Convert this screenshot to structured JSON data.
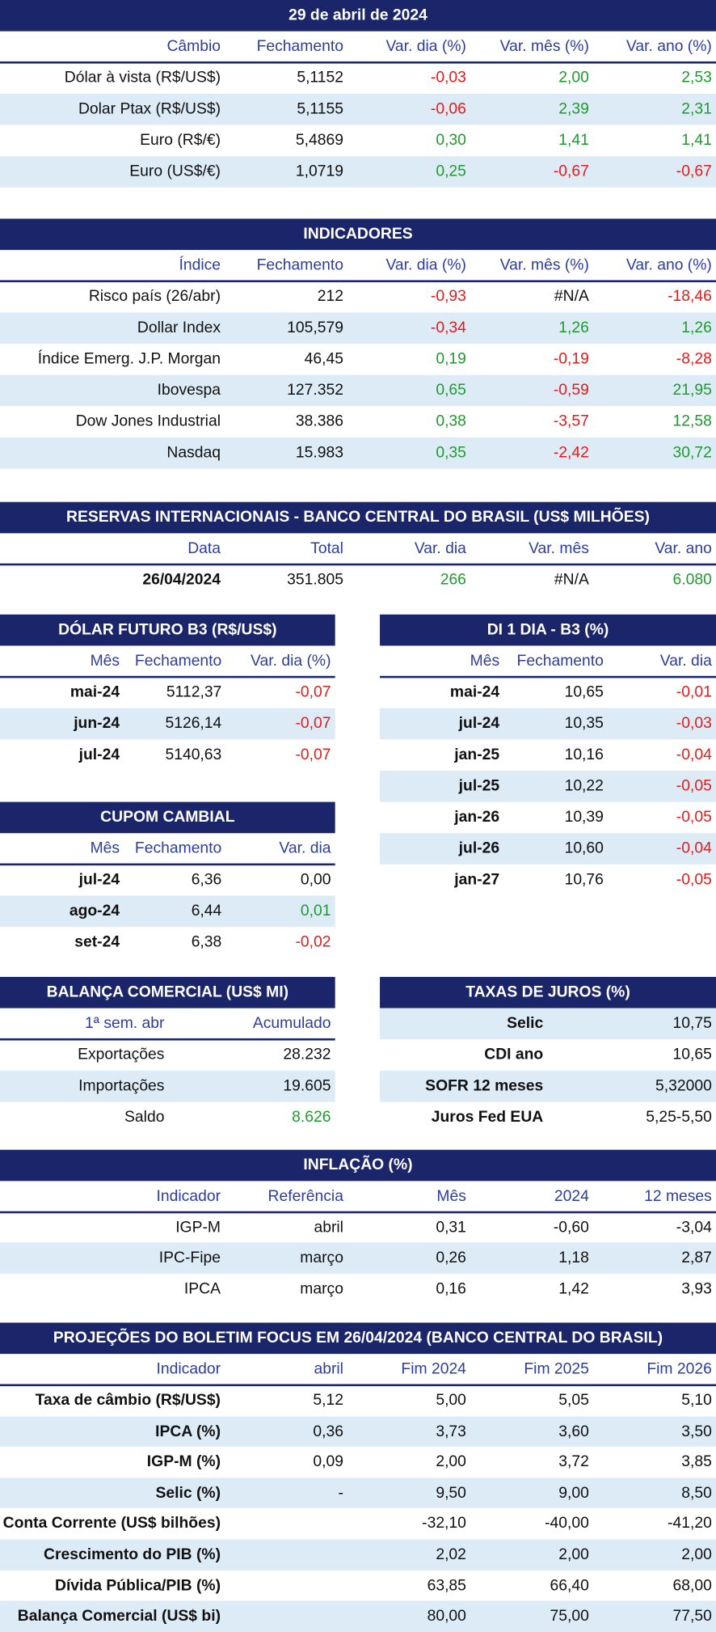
{
  "sections": [
    {
      "title": "29 de abril de 2024",
      "columns": [
        "Câmbio",
        "Fechamento",
        "Var. dia (%)",
        "Var. mês (%)",
        "Var. ano (%)"
      ],
      "tone_columns": [
        2,
        3,
        4
      ],
      "rows": [
        [
          "Dólar à vista (R$/US$)",
          "5,1152",
          "-0,03",
          "2,00",
          "2,53"
        ],
        [
          "Dolar Ptax (R$/US$)",
          "5,1155",
          "-0,06",
          "2,39",
          "2,31"
        ],
        [
          "Euro (R$/€)",
          "5,4869",
          "0,30",
          "1,41",
          "1,41"
        ],
        [
          "Euro (US$/€)",
          "1,0719",
          "0,25",
          "-0,67",
          "-0,67"
        ]
      ]
    },
    {
      "title": "INDICADORES",
      "columns": [
        "Índice",
        "Fechamento",
        "Var. dia (%)",
        "Var. mês (%)",
        "Var. ano (%)"
      ],
      "tone_columns": [
        2,
        3,
        4
      ],
      "rows": [
        [
          "Risco país (26/abr)",
          "212",
          "-0,93",
          "#N/A",
          "-18,46"
        ],
        [
          "Dollar Index",
          "105,579",
          "-0,34",
          "1,26",
          "1,26"
        ],
        [
          "Índice Emerg. J.P. Morgan",
          "46,45",
          "0,19",
          "-0,19",
          "-8,28"
        ],
        [
          "Ibovespa",
          "127.352",
          "0,65",
          "-0,59",
          "21,95"
        ],
        [
          "Dow Jones Industrial",
          "38.386",
          "0,38",
          "-3,57",
          "12,58"
        ],
        [
          "Nasdaq",
          "15.983",
          "0,35",
          "-2,42",
          "30,72"
        ]
      ]
    },
    {
      "title": "RESERVAS INTERNACIONAIS - BANCO CENTRAL DO BRASIL (US$ MILHÕES)",
      "columns": [
        "Data",
        "Total",
        "Var. dia",
        "Var. mês",
        "Var. ano"
      ],
      "tone_columns": [
        2,
        3,
        4
      ],
      "rows": [
        [
          "26/04/2024",
          "351.805",
          "266",
          "#N/A",
          "6.080"
        ]
      ]
    },
    {
      "title": "DÓLAR FUTURO B3 (R$/US$)",
      "columns": [
        "Mês",
        "Fechamento",
        "Var. dia (%)"
      ],
      "tone_columns": [
        2
      ],
      "rows": [
        [
          "mai-24",
          "5112,37",
          "-0,07"
        ],
        [
          "jun-24",
          "5126,14",
          "-0,07"
        ],
        [
          "jul-24",
          "5140,63",
          "-0,07"
        ]
      ]
    },
    {
      "title": "DI 1 DIA - B3 (%)",
      "columns": [
        "Mês",
        "Fechamento",
        "Var. dia"
      ],
      "tone_columns": [
        2
      ],
      "rows": [
        [
          "mai-24",
          "10,65",
          "-0,01"
        ],
        [
          "jul-24",
          "10,35",
          "-0,03"
        ],
        [
          "jan-25",
          "10,16",
          "-0,04"
        ],
        [
          "jul-25",
          "10,22",
          "-0,05"
        ],
        [
          "jan-26",
          "10,39",
          "-0,05"
        ],
        [
          "jul-26",
          "10,60",
          "-0,04"
        ],
        [
          "jan-27",
          "10,76",
          "-0,05"
        ]
      ]
    },
    {
      "title": "CUPOM CAMBIAL",
      "columns": [
        "Mês",
        "Fechamento",
        "Var. dia"
      ],
      "tone_columns": [
        2
      ],
      "rows": [
        [
          "jul-24",
          "6,36",
          "0,00"
        ],
        [
          "ago-24",
          "6,44",
          "0,01"
        ],
        [
          "set-24",
          "6,38",
          "-0,02"
        ]
      ]
    },
    {
      "title": "BALANÇA COMERCIAL (US$ MI)",
      "columns": [
        "1ª sem. abr",
        "Acumulado"
      ],
      "tone_columns": [],
      "green_rows": [
        2
      ],
      "rows": [
        [
          "Exportações",
          "28.232"
        ],
        [
          "Importações",
          "19.605"
        ],
        [
          "Saldo",
          "8.626"
        ]
      ]
    },
    {
      "title": "TAXAS DE JUROS (%)",
      "tone_columns": [],
      "first_row_shaded": true,
      "rows": [
        [
          "Selic",
          "10,75"
        ],
        [
          "CDI ano",
          "10,65"
        ],
        [
          "SOFR 12 meses",
          "5,32000"
        ],
        [
          "Juros Fed EUA",
          "5,25-5,50"
        ]
      ]
    },
    {
      "title": "INFLAÇÃO (%)",
      "columns": [
        "Indicador",
        "Referência",
        "Mês",
        "2024",
        "12 meses"
      ],
      "tone_columns": [],
      "rows": [
        [
          "IGP-M",
          "abril",
          "0,31",
          "-0,60",
          "-3,04"
        ],
        [
          "IPC-Fipe",
          "março",
          "0,26",
          "1,18",
          "2,87"
        ],
        [
          "IPCA",
          "março",
          "0,16",
          "1,42",
          "3,93"
        ]
      ]
    },
    {
      "title": "PROJEÇÕES DO BOLETIM FOCUS EM 26/04/2024 (BANCO CENTRAL DO BRASIL)",
      "columns": [
        "Indicador",
        "abril",
        "Fim 2024",
        "Fim 2025",
        "Fim 2026"
      ],
      "tone_columns": [],
      "rows": [
        [
          "Taxa de câmbio (R$/US$)",
          "5,12",
          "5,00",
          "5,05",
          "5,10"
        ],
        [
          "IPCA (%)",
          "0,36",
          "3,73",
          "3,60",
          "3,50"
        ],
        [
          "IGP-M (%)",
          "0,09",
          "2,00",
          "3,72",
          "3,85"
        ],
        [
          "Selic (%)",
          "-",
          "9,50",
          "9,00",
          "8,50"
        ],
        [
          "Conta Corrente (US$ bilhões)",
          null,
          "-32,10",
          "-40,00",
          "-41,20"
        ],
        [
          "Crescimento do PIB (%)",
          null,
          "2,02",
          "2,00",
          "2,00"
        ],
        [
          "Dívida Pública/PIB (%)",
          null,
          "63,85",
          "66,40",
          "68,00"
        ],
        [
          "Balança Comercial (US$ bi)",
          null,
          "80,00",
          "75,00",
          "77,50"
        ]
      ]
    }
  ]
}
